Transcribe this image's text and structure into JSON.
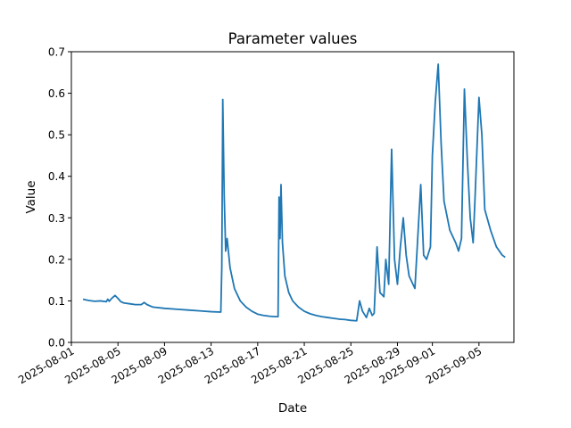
{
  "chart_data": {
    "type": "line",
    "title": "Parameter values",
    "xlabel": "Date",
    "ylabel": "Value",
    "xlim": [
      "2025-08-01",
      "2025-09-08"
    ],
    "ylim": [
      0,
      0.7
    ],
    "grid": false,
    "x_ticks": [
      "2025-08-01",
      "2025-08-05",
      "2025-08-09",
      "2025-08-13",
      "2025-08-17",
      "2025-08-21",
      "2025-08-25",
      "2025-08-29",
      "2025-09-01",
      "2025-09-05"
    ],
    "y_ticks": [
      "0.0",
      "0.1",
      "0.2",
      "0.3",
      "0.4",
      "0.5",
      "0.6",
      "0.7"
    ],
    "series": [
      {
        "color": "#1f77b4",
        "points": [
          [
            "2025-08-02T00:00",
            0.104
          ],
          [
            "2025-08-02T12:00",
            0.101
          ],
          [
            "2025-08-03T00:00",
            0.099
          ],
          [
            "2025-08-03T12:00",
            0.1
          ],
          [
            "2025-08-04T00:00",
            0.098
          ],
          [
            "2025-08-04T03:00",
            0.104
          ],
          [
            "2025-08-04T06:00",
            0.099
          ],
          [
            "2025-08-04T12:00",
            0.107
          ],
          [
            "2025-08-04T18:00",
            0.113
          ],
          [
            "2025-08-05T00:00",
            0.106
          ],
          [
            "2025-08-05T06:00",
            0.098
          ],
          [
            "2025-08-05T12:00",
            0.095
          ],
          [
            "2025-08-06T00:00",
            0.093
          ],
          [
            "2025-08-06T12:00",
            0.091
          ],
          [
            "2025-08-07T00:00",
            0.091
          ],
          [
            "2025-08-07T06:00",
            0.096
          ],
          [
            "2025-08-07T12:00",
            0.091
          ],
          [
            "2025-08-08T00:00",
            0.085
          ],
          [
            "2025-08-09T00:00",
            0.082
          ],
          [
            "2025-08-10T00:00",
            0.08
          ],
          [
            "2025-08-11T00:00",
            0.078
          ],
          [
            "2025-08-12T00:00",
            0.076
          ],
          [
            "2025-08-13T00:00",
            0.074
          ],
          [
            "2025-08-13T20:00",
            0.073
          ],
          [
            "2025-08-13T22:00",
            0.18
          ],
          [
            "2025-08-14T00:00",
            0.585
          ],
          [
            "2025-08-14T03:00",
            0.35
          ],
          [
            "2025-08-14T06:00",
            0.22
          ],
          [
            "2025-08-14T09:00",
            0.25
          ],
          [
            "2025-08-14T15:00",
            0.18
          ],
          [
            "2025-08-15T00:00",
            0.13
          ],
          [
            "2025-08-15T12:00",
            0.1
          ],
          [
            "2025-08-16T00:00",
            0.085
          ],
          [
            "2025-08-16T12:00",
            0.075
          ],
          [
            "2025-08-17T00:00",
            0.068
          ],
          [
            "2025-08-17T12:00",
            0.065
          ],
          [
            "2025-08-18T00:00",
            0.063
          ],
          [
            "2025-08-18T12:00",
            0.062
          ],
          [
            "2025-08-18T18:00",
            0.062
          ],
          [
            "2025-08-18T20:00",
            0.35
          ],
          [
            "2025-08-18T22:00",
            0.25
          ],
          [
            "2025-08-19T00:00",
            0.38
          ],
          [
            "2025-08-19T03:00",
            0.24
          ],
          [
            "2025-08-19T08:00",
            0.16
          ],
          [
            "2025-08-19T16:00",
            0.12
          ],
          [
            "2025-08-20T00:00",
            0.1
          ],
          [
            "2025-08-20T12:00",
            0.085
          ],
          [
            "2025-08-21T00:00",
            0.075
          ],
          [
            "2025-08-21T12:00",
            0.069
          ],
          [
            "2025-08-22T00:00",
            0.065
          ],
          [
            "2025-08-22T12:00",
            0.062
          ],
          [
            "2025-08-23T00:00",
            0.06
          ],
          [
            "2025-08-23T12:00",
            0.058
          ],
          [
            "2025-08-24T00:00",
            0.056
          ],
          [
            "2025-08-24T12:00",
            0.055
          ],
          [
            "2025-08-25T00:00",
            0.053
          ],
          [
            "2025-08-25T12:00",
            0.052
          ],
          [
            "2025-08-25T18:00",
            0.1
          ],
          [
            "2025-08-26T00:00",
            0.075
          ],
          [
            "2025-08-26T08:00",
            0.06
          ],
          [
            "2025-08-26T14:00",
            0.082
          ],
          [
            "2025-08-26T20:00",
            0.065
          ],
          [
            "2025-08-27T00:00",
            0.07
          ],
          [
            "2025-08-27T06:00",
            0.23
          ],
          [
            "2025-08-27T12:00",
            0.12
          ],
          [
            "2025-08-27T20:00",
            0.11
          ],
          [
            "2025-08-28T00:00",
            0.2
          ],
          [
            "2025-08-28T06:00",
            0.14
          ],
          [
            "2025-08-28T12:00",
            0.465
          ],
          [
            "2025-08-28T18:00",
            0.2
          ],
          [
            "2025-08-29T00:00",
            0.14
          ],
          [
            "2025-08-29T06:00",
            0.23
          ],
          [
            "2025-08-29T12:00",
            0.3
          ],
          [
            "2025-08-29T18:00",
            0.21
          ],
          [
            "2025-08-30T00:00",
            0.16
          ],
          [
            "2025-08-30T12:00",
            0.13
          ],
          [
            "2025-08-31T00:00",
            0.38
          ],
          [
            "2025-08-31T06:00",
            0.21
          ],
          [
            "2025-08-31T12:00",
            0.2
          ],
          [
            "2025-08-31T20:00",
            0.23
          ],
          [
            "2025-09-01T00:00",
            0.45
          ],
          [
            "2025-09-01T06:00",
            0.58
          ],
          [
            "2025-09-01T12:00",
            0.67
          ],
          [
            "2025-09-01T18:00",
            0.48
          ],
          [
            "2025-09-02T00:00",
            0.34
          ],
          [
            "2025-09-02T12:00",
            0.27
          ],
          [
            "2025-09-03T00:00",
            0.24
          ],
          [
            "2025-09-03T06:00",
            0.22
          ],
          [
            "2025-09-03T12:00",
            0.25
          ],
          [
            "2025-09-03T18:00",
            0.61
          ],
          [
            "2025-09-04T00:00",
            0.44
          ],
          [
            "2025-09-04T06:00",
            0.3
          ],
          [
            "2025-09-04T12:00",
            0.24
          ],
          [
            "2025-09-04T16:00",
            0.35
          ],
          [
            "2025-09-05T00:00",
            0.59
          ],
          [
            "2025-09-05T06:00",
            0.5
          ],
          [
            "2025-09-05T12:00",
            0.32
          ],
          [
            "2025-09-06T00:00",
            0.27
          ],
          [
            "2025-09-06T12:00",
            0.23
          ],
          [
            "2025-09-07T00:00",
            0.21
          ],
          [
            "2025-09-07T06:00",
            0.205
          ]
        ]
      }
    ]
  }
}
